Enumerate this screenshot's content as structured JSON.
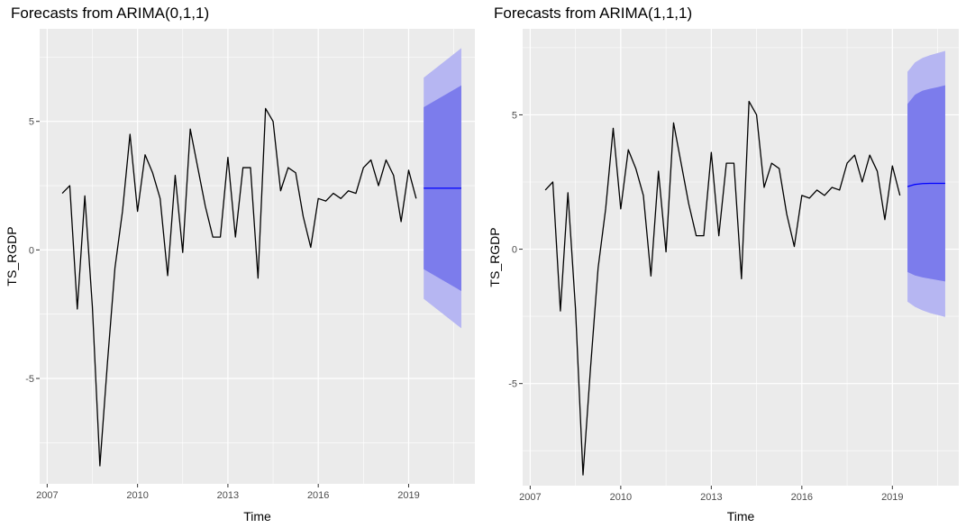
{
  "chart_data": [
    {
      "type": "line",
      "title": "Forecasts from ARIMA(0,1,1)",
      "xlabel": "Time",
      "ylabel": "TS_RGDP",
      "xlim": [
        2006.75,
        2021.2
      ],
      "ylim": [
        -9.1,
        8.6
      ],
      "x_ticks": [
        2007,
        2010,
        2013,
        2016,
        2019
      ],
      "x_tick_labels": [
        "2007",
        "2010",
        "2013",
        "2016",
        "2019"
      ],
      "y_ticks": [
        -5,
        0,
        5
      ],
      "y_tick_labels": [
        "-5",
        "0",
        "5"
      ],
      "grid": true,
      "colors": {
        "panel_bg": "#ebebeb",
        "grid": "#ffffff",
        "history": "#000000",
        "forecast": "#0000ff",
        "band_95": "#b6b6f2",
        "band_80": "#7c7cec"
      },
      "history": {
        "x": [
          2007.5,
          2007.75,
          2008.0,
          2008.25,
          2008.5,
          2008.75,
          2009.0,
          2009.25,
          2009.5,
          2009.75,
          2010.0,
          2010.25,
          2010.5,
          2010.75,
          2011.0,
          2011.25,
          2011.5,
          2011.75,
          2012.0,
          2012.25,
          2012.5,
          2012.75,
          2013.0,
          2013.25,
          2013.5,
          2013.75,
          2014.0,
          2014.25,
          2014.5,
          2014.75,
          2015.0,
          2015.25,
          2015.5,
          2015.75,
          2016.0,
          2016.25,
          2016.5,
          2016.75,
          2017.0,
          2017.25,
          2017.5,
          2017.75,
          2018.0,
          2018.25,
          2018.5,
          2018.75,
          2019.0,
          2019.25
        ],
        "values": [
          2.2,
          2.5,
          -2.3,
          2.1,
          -2.2,
          -8.4,
          -4.4,
          -0.7,
          1.5,
          4.5,
          1.5,
          3.7,
          3.0,
          2.0,
          -1.0,
          2.9,
          -0.1,
          4.7,
          3.2,
          1.7,
          0.5,
          0.5,
          3.6,
          0.5,
          3.2,
          3.2,
          -1.1,
          5.5,
          5.0,
          2.3,
          3.2,
          3.0,
          1.3,
          0.1,
          2.0,
          1.9,
          2.2,
          2.0,
          2.3,
          2.2,
          3.2,
          3.5,
          2.5,
          3.5,
          2.9,
          1.1,
          3.1,
          2.0
        ]
      },
      "forecast": {
        "x": [
          2019.5,
          2020.75
        ],
        "mean": [
          2.4,
          2.4
        ],
        "lo80": [
          -0.75,
          -1.6
        ],
        "hi80": [
          5.55,
          6.4
        ],
        "lo95": [
          -1.9,
          -3.05
        ],
        "hi95": [
          6.7,
          7.85
        ]
      }
    },
    {
      "type": "line",
      "title": "Forecasts from ARIMA(1,1,1)",
      "xlabel": "Time",
      "ylabel": "TS_RGDP",
      "xlim": [
        2006.75,
        2021.2
      ],
      "ylim": [
        -8.8,
        8.2
      ],
      "x_ticks": [
        2007,
        2010,
        2013,
        2016,
        2019
      ],
      "x_tick_labels": [
        "2007",
        "2010",
        "2013",
        "2016",
        "2019"
      ],
      "y_ticks": [
        -5,
        0,
        5
      ],
      "y_tick_labels": [
        "-5",
        "0",
        "5"
      ],
      "grid": true,
      "colors": {
        "panel_bg": "#ebebeb",
        "grid": "#ffffff",
        "history": "#000000",
        "forecast": "#0000ff",
        "band_95": "#b6b6f2",
        "band_80": "#7c7cec"
      },
      "history": {
        "x": [
          2007.5,
          2007.75,
          2008.0,
          2008.25,
          2008.5,
          2008.75,
          2009.0,
          2009.25,
          2009.5,
          2009.75,
          2010.0,
          2010.25,
          2010.5,
          2010.75,
          2011.0,
          2011.25,
          2011.5,
          2011.75,
          2012.0,
          2012.25,
          2012.5,
          2012.75,
          2013.0,
          2013.25,
          2013.5,
          2013.75,
          2014.0,
          2014.25,
          2014.5,
          2014.75,
          2015.0,
          2015.25,
          2015.5,
          2015.75,
          2016.0,
          2016.25,
          2016.5,
          2016.75,
          2017.0,
          2017.25,
          2017.5,
          2017.75,
          2018.0,
          2018.25,
          2018.5,
          2018.75,
          2019.0,
          2019.25
        ],
        "values": [
          2.2,
          2.5,
          -2.3,
          2.1,
          -2.2,
          -8.4,
          -4.4,
          -0.7,
          1.5,
          4.5,
          1.5,
          3.7,
          3.0,
          2.0,
          -1.0,
          2.9,
          -0.1,
          4.7,
          3.2,
          1.7,
          0.5,
          0.5,
          3.6,
          0.5,
          3.2,
          3.2,
          -1.1,
          5.5,
          5.0,
          2.3,
          3.2,
          3.0,
          1.3,
          0.1,
          2.0,
          1.9,
          2.2,
          2.0,
          2.3,
          2.2,
          3.2,
          3.5,
          2.5,
          3.5,
          2.9,
          1.1,
          3.1,
          2.0
        ]
      },
      "forecast": {
        "x": [
          2019.5,
          2019.75,
          2020.0,
          2020.25,
          2020.5,
          2020.75
        ],
        "mean": [
          2.33,
          2.41,
          2.44,
          2.45,
          2.45,
          2.45
        ],
        "lo80": [
          -0.85,
          -0.98,
          -1.05,
          -1.1,
          -1.15,
          -1.2
        ],
        "hi80": [
          5.4,
          5.75,
          5.9,
          5.97,
          6.03,
          6.1
        ],
        "lo95": [
          -1.95,
          -2.15,
          -2.28,
          -2.38,
          -2.45,
          -2.52
        ],
        "hi95": [
          6.6,
          6.95,
          7.12,
          7.22,
          7.3,
          7.38
        ]
      }
    }
  ]
}
